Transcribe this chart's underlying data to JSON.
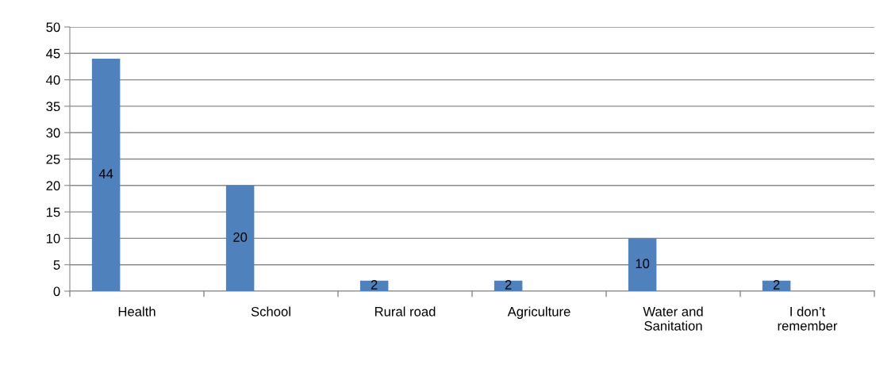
{
  "chart_data": {
    "type": "bar",
    "categories": [
      "Health",
      "School",
      "Rural road",
      "Agriculture",
      "Water and\nSanitation",
      "I don’t\nremember"
    ],
    "values": [
      44,
      20,
      2,
      2,
      10,
      2
    ],
    "color": "#4f81bd",
    "ylim": [
      0,
      50
    ],
    "yticks": [
      0,
      5,
      10,
      15,
      20,
      25,
      30,
      35,
      40,
      45,
      50
    ],
    "grid": "y",
    "data_labels": true
  }
}
